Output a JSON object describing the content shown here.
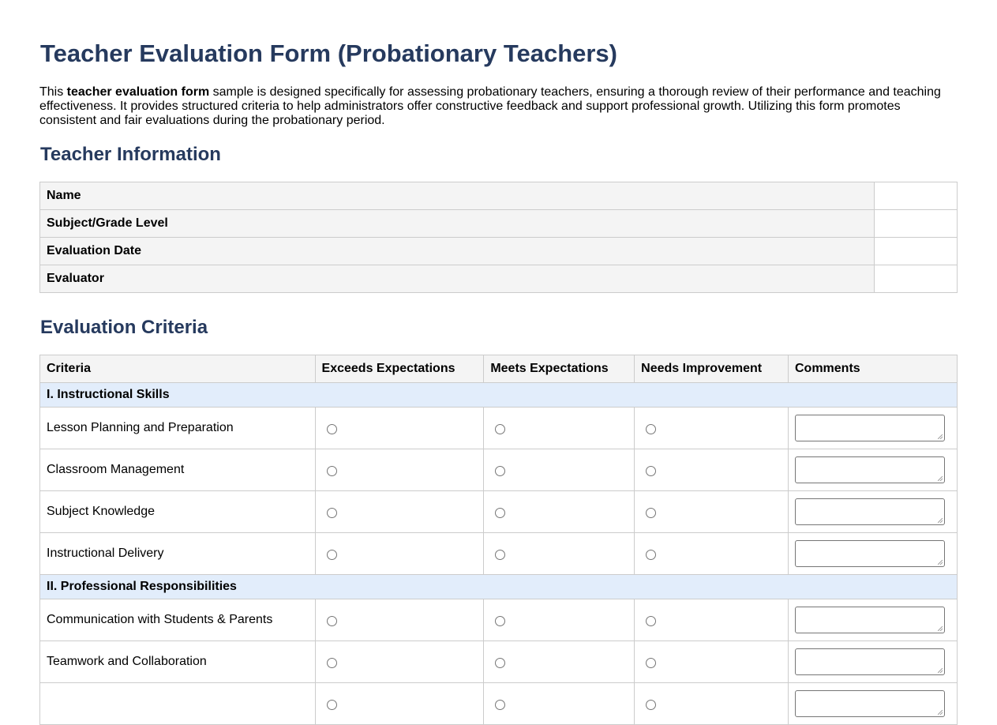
{
  "title": "Teacher Evaluation Form (Probationary Teachers)",
  "intro": {
    "pre": "This ",
    "bold": "teacher evaluation form",
    "post": " sample is designed specifically for assessing probationary teachers, ensuring a thorough review of their performance and teaching effectiveness. It provides structured criteria to help administrators offer constructive feedback and support professional growth. Utilizing this form promotes consistent and fair evaluations during the probationary period."
  },
  "teacher_info": {
    "heading": "Teacher Information",
    "fields": [
      {
        "label": "Name",
        "value": ""
      },
      {
        "label": "Subject/Grade Level",
        "value": ""
      },
      {
        "label": "Evaluation Date",
        "value": ""
      },
      {
        "label": "Evaluator",
        "value": ""
      }
    ]
  },
  "criteria": {
    "heading": "Evaluation Criteria",
    "columns": [
      "Criteria",
      "Exceeds Expectations",
      "Meets Expectations",
      "Needs Improvement",
      "Comments"
    ],
    "sections": [
      {
        "title": "I. Instructional Skills",
        "items": [
          "Lesson Planning and Preparation",
          "Classroom Management",
          "Subject Knowledge",
          "Instructional Delivery"
        ]
      },
      {
        "title": "II. Professional Responsibilities",
        "items": [
          "Communication with Students & Parents",
          "Teamwork and Collaboration",
          ""
        ]
      }
    ]
  }
}
